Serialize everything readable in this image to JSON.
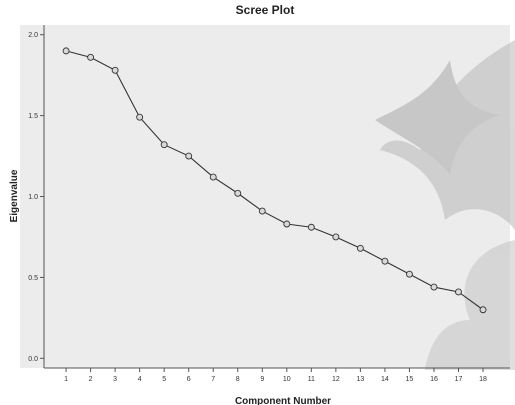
{
  "colors": {
    "page_background": "#ffffff",
    "plot_background": "#ececec",
    "line": "#333333",
    "marker_fill": "#d9d9d9",
    "watermark": "#b8b8b8"
  },
  "chart_data": {
    "type": "line",
    "title": "Scree Plot",
    "xlabel": "Component Number",
    "ylabel": "Eigenvalue",
    "x": [
      1,
      2,
      3,
      4,
      5,
      6,
      7,
      8,
      9,
      10,
      11,
      12,
      13,
      14,
      15,
      16,
      17,
      18
    ],
    "series": [
      {
        "values": [
          1.9,
          1.86,
          1.78,
          1.49,
          1.32,
          1.25,
          1.12,
          1.02,
          0.91,
          0.83,
          0.81,
          0.75,
          0.68,
          0.6,
          0.52,
          0.44,
          0.41,
          0.3
        ],
        "marker": "open-circle"
      }
    ],
    "xlim": [
      0.1,
      19.1
    ],
    "ylim": [
      -0.06,
      2.06
    ],
    "x_ticks": [
      "1",
      "2",
      "3",
      "4",
      "5",
      "6",
      "7",
      "8",
      "9",
      "10",
      "11",
      "12",
      "13",
      "14",
      "15",
      "16",
      "17",
      "18"
    ],
    "y_ticks": [
      "0.0",
      "0.5",
      "1.0",
      "1.5",
      "2.0"
    ],
    "y_tick_values": [
      0.0,
      0.5,
      1.0,
      1.5,
      2.0
    ],
    "grid": false,
    "legend": "none"
  }
}
